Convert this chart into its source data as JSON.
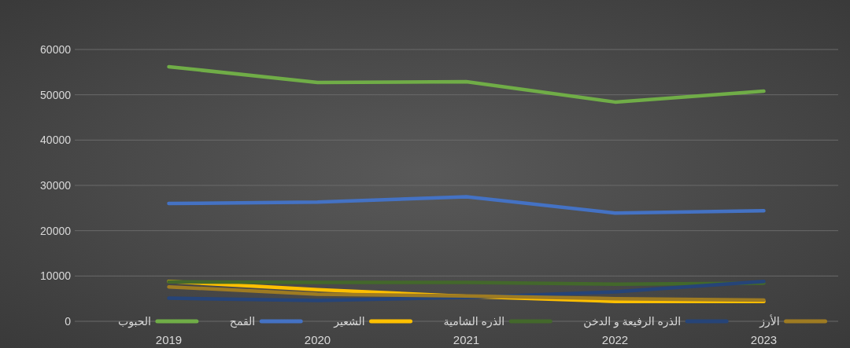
{
  "chart_data": {
    "type": "line",
    "categories": [
      "2019",
      "2020",
      "2021",
      "2022",
      "2023"
    ],
    "ylim": [
      0,
      60000
    ],
    "yticks": [
      0,
      10000,
      20000,
      30000,
      40000,
      50000,
      60000
    ],
    "grid": "y",
    "legend": "bottom",
    "line_style": "solid",
    "marker": "none",
    "series": [
      {
        "name": "الحبوب",
        "color": "#70ad47",
        "values": [
          56200,
          52700,
          52900,
          48400,
          50800
        ]
      },
      {
        "name": "القمح",
        "color": "#4472c4",
        "values": [
          26000,
          26300,
          27500,
          23900,
          24400
        ]
      },
      {
        "name": "الشعير",
        "color": "#ffc000",
        "values": [
          8800,
          7000,
          5500,
          4400,
          4400
        ]
      },
      {
        "name": "الذره الشامية",
        "color": "#43682b",
        "values": [
          8700,
          8600,
          8600,
          8200,
          8400
        ]
      },
      {
        "name": "الذره الرفيعة و الدخن",
        "color": "#264478",
        "values": [
          5100,
          4600,
          5300,
          6500,
          8800
        ]
      },
      {
        "name": "الأرز",
        "color": "#9e7b22",
        "values": [
          7600,
          6000,
          5600,
          5000,
          4700
        ]
      }
    ]
  }
}
